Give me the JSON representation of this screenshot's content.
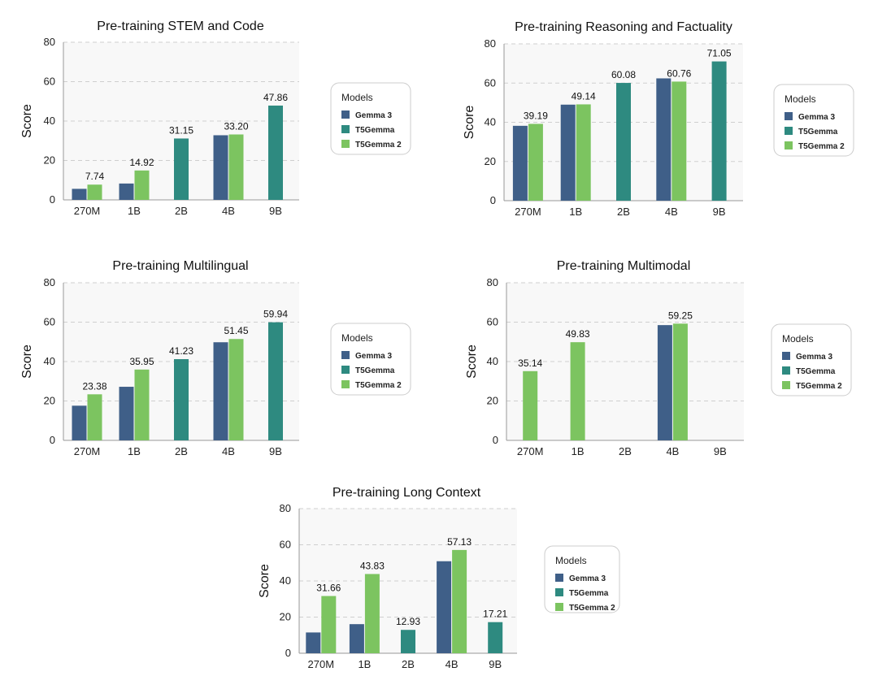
{
  "legend": {
    "title": "Models",
    "items": [
      {
        "name": "Gemma 3",
        "color": "#3f5f88"
      },
      {
        "name": "T5Gemma",
        "color": "#2e8a80"
      },
      {
        "name": "T5Gemma 2",
        "color": "#7cc460"
      }
    ]
  },
  "chart_data": [
    {
      "type": "bar",
      "title": "Pre-training STEM and Code",
      "ylabel": "Score",
      "xlabel": "",
      "ylim": [
        0,
        80
      ],
      "yticks": [
        0,
        20,
        40,
        60,
        80
      ],
      "grid": true,
      "categories": [
        "270M",
        "1B",
        "2B",
        "4B",
        "9B"
      ],
      "series": [
        {
          "name": "Gemma 3",
          "values": [
            5.6,
            8.3,
            null,
            32.8,
            null
          ]
        },
        {
          "name": "T5Gemma",
          "values": [
            null,
            null,
            31.15,
            null,
            47.86
          ]
        },
        {
          "name": "T5Gemma 2",
          "values": [
            7.74,
            14.92,
            null,
            33.2,
            null
          ]
        }
      ],
      "labels": [
        {
          "series": "T5Gemma 2",
          "category": "270M",
          "text": "7.74"
        },
        {
          "series": "T5Gemma 2",
          "category": "1B",
          "text": "14.92"
        },
        {
          "series": "T5Gemma",
          "category": "2B",
          "text": "31.15"
        },
        {
          "series": "T5Gemma 2",
          "category": "4B",
          "text": "33.20"
        },
        {
          "series": "T5Gemma",
          "category": "9B",
          "text": "47.86"
        }
      ]
    },
    {
      "type": "bar",
      "title": "Pre-training Reasoning and Factuality",
      "ylabel": "Score",
      "xlabel": "",
      "ylim": [
        0,
        80
      ],
      "yticks": [
        0,
        20,
        40,
        60,
        80
      ],
      "grid": true,
      "categories": [
        "270M",
        "1B",
        "2B",
        "4B",
        "9B"
      ],
      "series": [
        {
          "name": "Gemma 3",
          "values": [
            38.2,
            49.0,
            null,
            62.4,
            null
          ]
        },
        {
          "name": "T5Gemma",
          "values": [
            null,
            null,
            60.08,
            null,
            71.05
          ]
        },
        {
          "name": "T5Gemma 2",
          "values": [
            39.19,
            49.14,
            null,
            60.76,
            null
          ]
        }
      ],
      "labels": [
        {
          "series": "T5Gemma 2",
          "category": "270M",
          "text": "39.19"
        },
        {
          "series": "T5Gemma 2",
          "category": "1B",
          "text": "49.14"
        },
        {
          "series": "T5Gemma",
          "category": "2B",
          "text": "60.08"
        },
        {
          "series": "T5Gemma 2",
          "category": "4B",
          "text": "60.76"
        },
        {
          "series": "T5Gemma",
          "category": "9B",
          "text": "71.05"
        }
      ]
    },
    {
      "type": "bar",
      "title": "Pre-training Multilingual",
      "ylabel": "Score",
      "xlabel": "",
      "ylim": [
        0,
        80
      ],
      "yticks": [
        0,
        20,
        40,
        60,
        80
      ],
      "grid": true,
      "categories": [
        "270M",
        "1B",
        "2B",
        "4B",
        "9B"
      ],
      "series": [
        {
          "name": "Gemma 3",
          "values": [
            17.6,
            27.2,
            null,
            49.8,
            null
          ]
        },
        {
          "name": "T5Gemma",
          "values": [
            null,
            null,
            41.23,
            null,
            59.94
          ]
        },
        {
          "name": "T5Gemma 2",
          "values": [
            23.38,
            35.95,
            null,
            51.45,
            null
          ]
        }
      ],
      "labels": [
        {
          "series": "T5Gemma 2",
          "category": "270M",
          "text": "23.38"
        },
        {
          "series": "T5Gemma 2",
          "category": "1B",
          "text": "35.95"
        },
        {
          "series": "T5Gemma",
          "category": "2B",
          "text": "41.23"
        },
        {
          "series": "T5Gemma 2",
          "category": "4B",
          "text": "51.45"
        },
        {
          "series": "T5Gemma",
          "category": "9B",
          "text": "59.94"
        }
      ]
    },
    {
      "type": "bar",
      "title": "Pre-training Multimodal",
      "ylabel": "Score",
      "xlabel": "",
      "ylim": [
        0,
        80
      ],
      "yticks": [
        0,
        20,
        40,
        60,
        80
      ],
      "grid": true,
      "categories": [
        "270M",
        "1B",
        "2B",
        "4B",
        "9B"
      ],
      "series": [
        {
          "name": "Gemma 3",
          "values": [
            null,
            null,
            null,
            58.5,
            null
          ]
        },
        {
          "name": "T5Gemma",
          "values": [
            null,
            null,
            null,
            null,
            null
          ]
        },
        {
          "name": "T5Gemma 2",
          "values": [
            35.14,
            49.83,
            null,
            59.25,
            null
          ]
        }
      ],
      "labels": [
        {
          "series": "T5Gemma 2",
          "category": "270M",
          "text": "35.14"
        },
        {
          "series": "T5Gemma 2",
          "category": "1B",
          "text": "49.83"
        },
        {
          "series": "T5Gemma 2",
          "category": "4B",
          "text": "59.25"
        }
      ]
    },
    {
      "type": "bar",
      "title": "Pre-training Long Context",
      "ylabel": "Score",
      "xlabel": "",
      "ylim": [
        0,
        80
      ],
      "yticks": [
        0,
        20,
        40,
        60,
        80
      ],
      "grid": true,
      "categories": [
        "270M",
        "1B",
        "2B",
        "4B",
        "9B"
      ],
      "series": [
        {
          "name": "Gemma 3",
          "values": [
            11.5,
            16.1,
            null,
            50.9,
            null
          ]
        },
        {
          "name": "T5Gemma",
          "values": [
            null,
            null,
            12.93,
            null,
            17.21
          ]
        },
        {
          "name": "T5Gemma 2",
          "values": [
            31.66,
            43.83,
            null,
            57.13,
            null
          ]
        }
      ],
      "labels": [
        {
          "series": "T5Gemma 2",
          "category": "270M",
          "text": "31.66"
        },
        {
          "series": "T5Gemma 2",
          "category": "1B",
          "text": "43.83"
        },
        {
          "series": "T5Gemma",
          "category": "2B",
          "text": "12.93"
        },
        {
          "series": "T5Gemma 2",
          "category": "4B",
          "text": "57.13"
        },
        {
          "series": "T5Gemma",
          "category": "9B",
          "text": "17.21"
        }
      ]
    }
  ]
}
